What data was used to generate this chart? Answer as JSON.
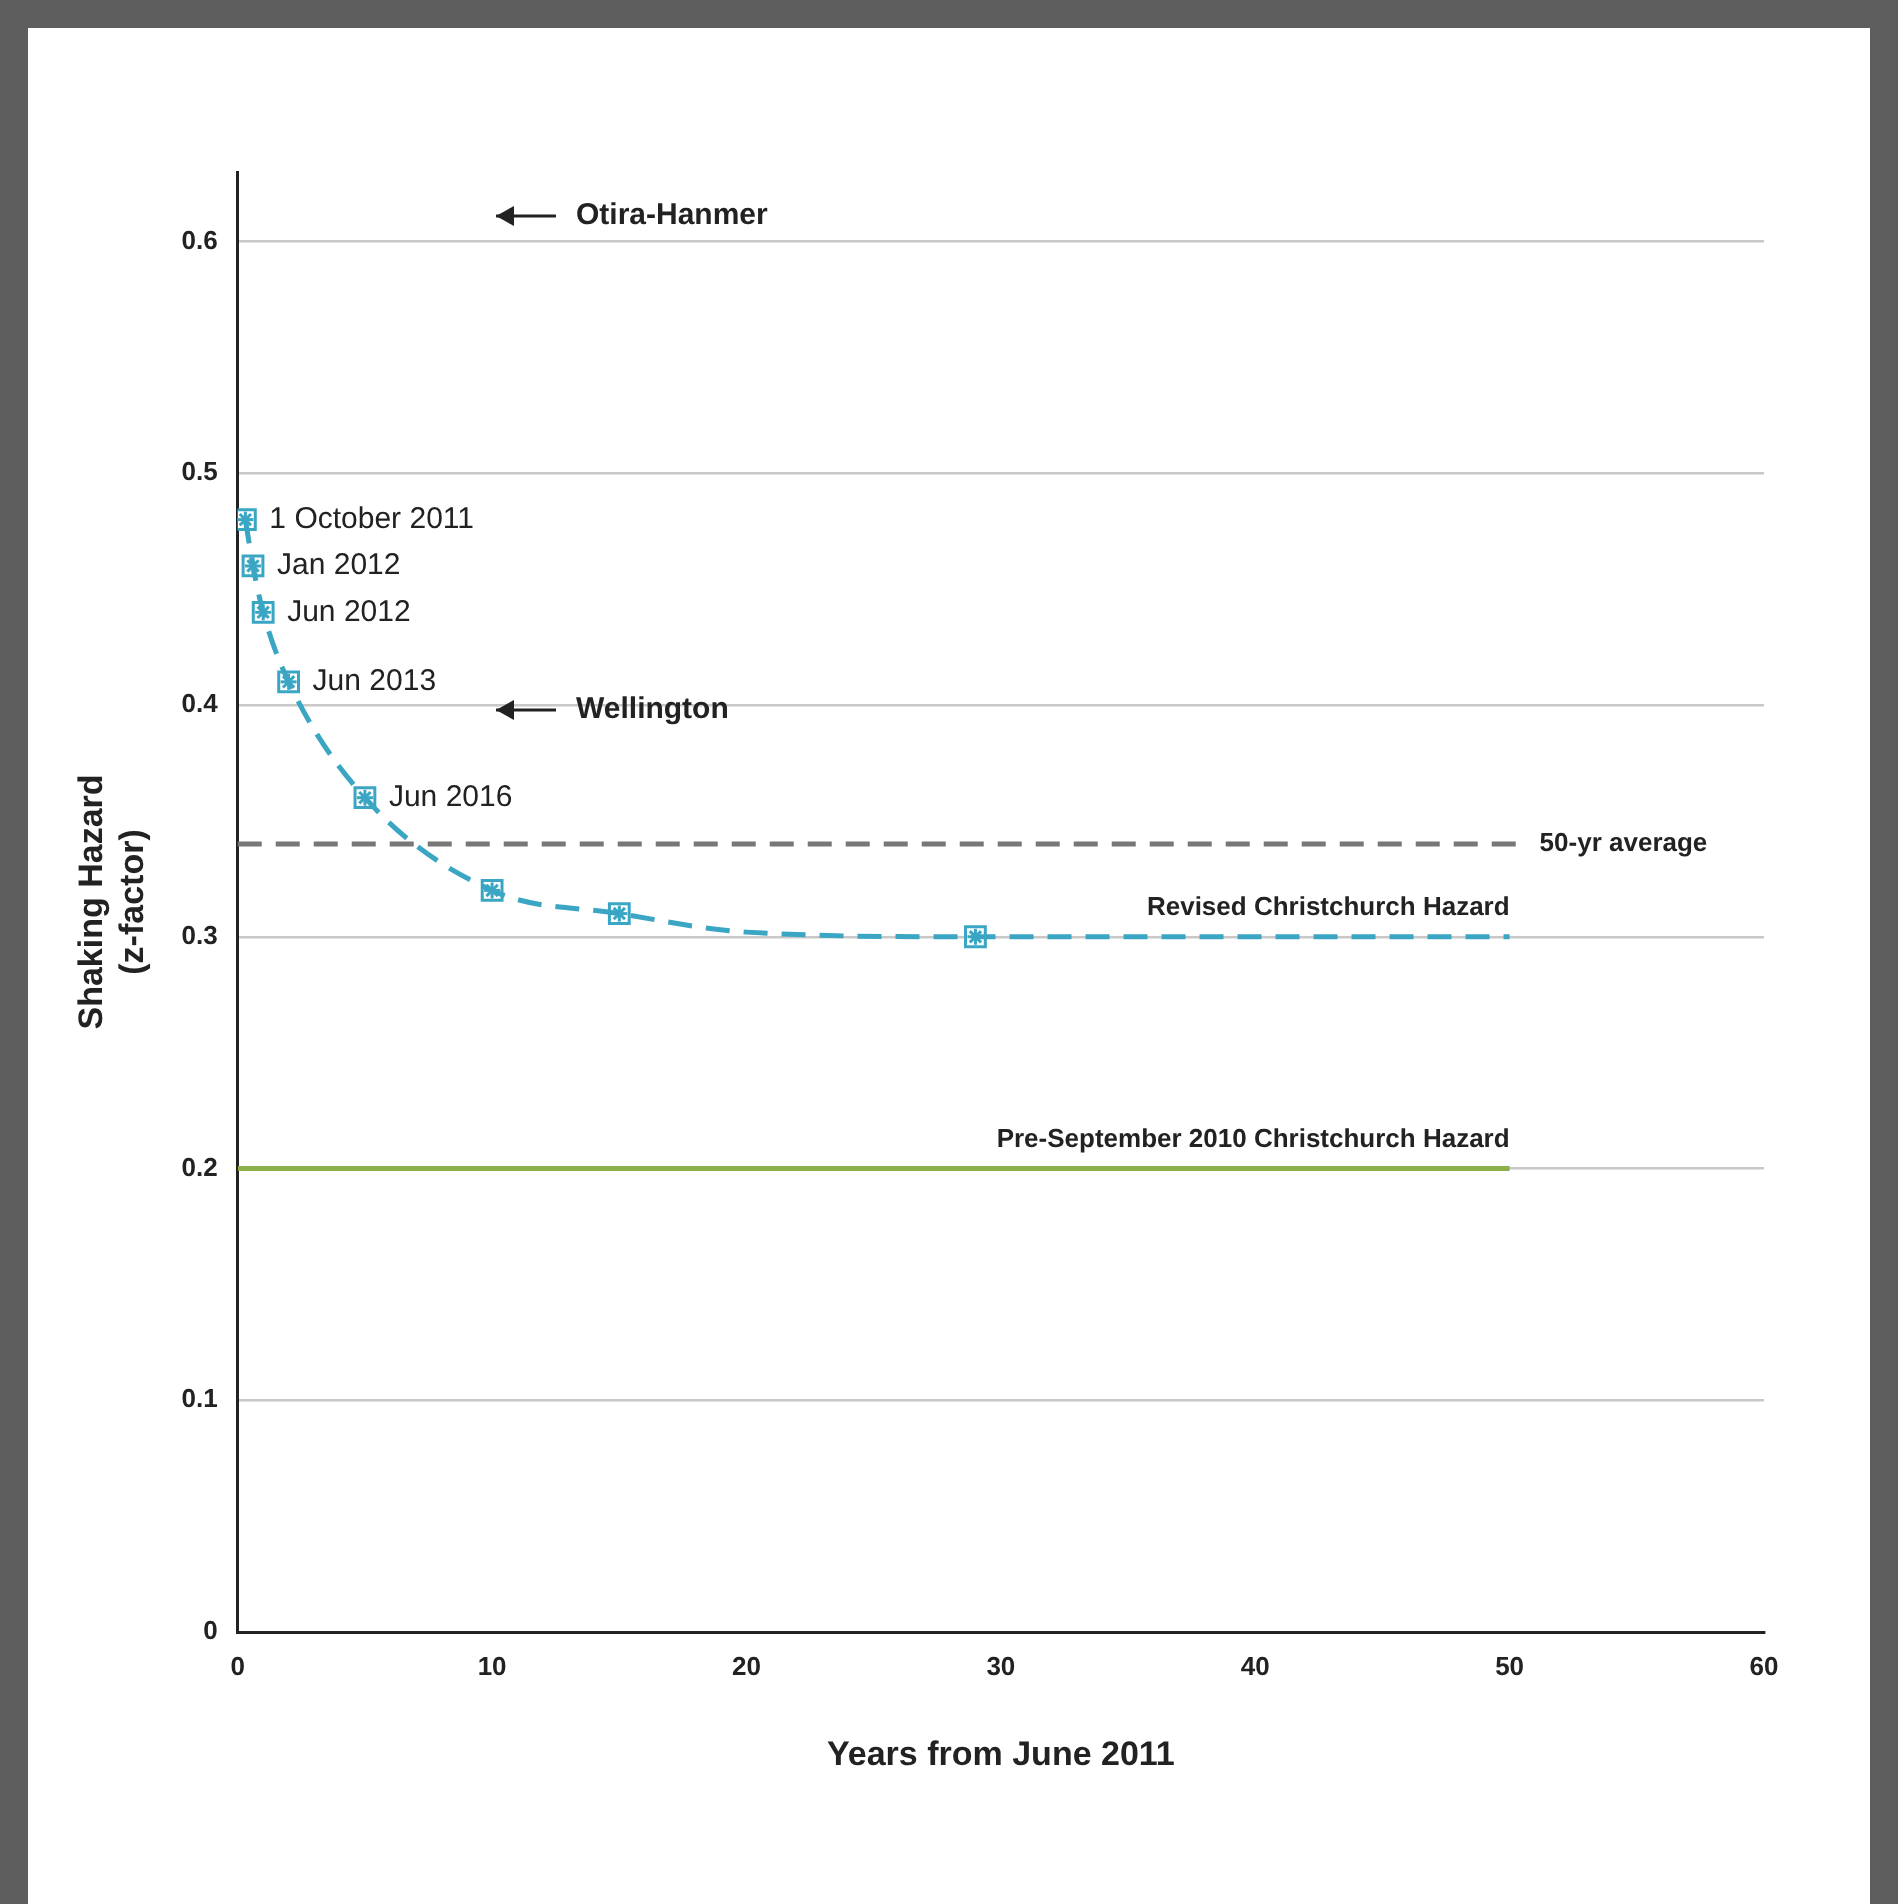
{
  "chart_data": {
    "type": "line",
    "xlabel": "Years from June 2011",
    "ylabel": "Shaking Hazard\n(z-factor)",
    "xlim": [
      0,
      60
    ],
    "xticks": [
      0,
      10,
      20,
      30,
      40,
      50,
      60
    ],
    "ylim": [
      0,
      0.63
    ],
    "yticks": [
      0,
      0.1,
      0.2,
      0.3,
      0.4,
      0.5,
      0.6
    ],
    "grid": "y",
    "legend": false,
    "series": [
      {
        "name": "Revised Christchurch Hazard",
        "color": "#3aa6c4",
        "line_style": "dashed",
        "x": [
          0.3,
          0.6,
          1,
          2,
          5,
          10,
          15,
          20,
          29,
          40,
          50
        ],
        "values": [
          0.48,
          0.46,
          0.44,
          0.41,
          0.36,
          0.32,
          0.31,
          0.302,
          0.3,
          0.3,
          0.3
        ]
      },
      {
        "type": "scatter",
        "color": "#3aa6c4",
        "marker": "square",
        "x": [
          0.3,
          0.6,
          1,
          2,
          5,
          10,
          15,
          29
        ],
        "values": [
          0.48,
          0.46,
          0.44,
          0.41,
          0.36,
          0.32,
          0.31,
          0.3
        ]
      },
      {
        "name": "Pre-September 2010 Christchurch Hazard",
        "color": "#8cb04a",
        "line_style": "solid",
        "x": [
          0,
          50
        ],
        "values": [
          0.2,
          0.2
        ]
      }
    ],
    "ref_lines": [
      {
        "axis": "y",
        "value": 0.34,
        "label": "50-yr average",
        "color": "#777777",
        "line_style": "dashed"
      }
    ],
    "annotations": [
      {
        "text": "1 October 2011",
        "x": 0.3,
        "y": 0.48
      },
      {
        "text": "Jan 2012",
        "x": 0.6,
        "y": 0.46
      },
      {
        "text": "Jun 2012",
        "x": 1,
        "y": 0.44
      },
      {
        "text": "Jun 2013",
        "x": 2,
        "y": 0.41
      },
      {
        "text": "Jun 2016",
        "x": 5,
        "y": 0.36
      },
      "Otira-Hanmer",
      "Wellington"
    ]
  }
}
